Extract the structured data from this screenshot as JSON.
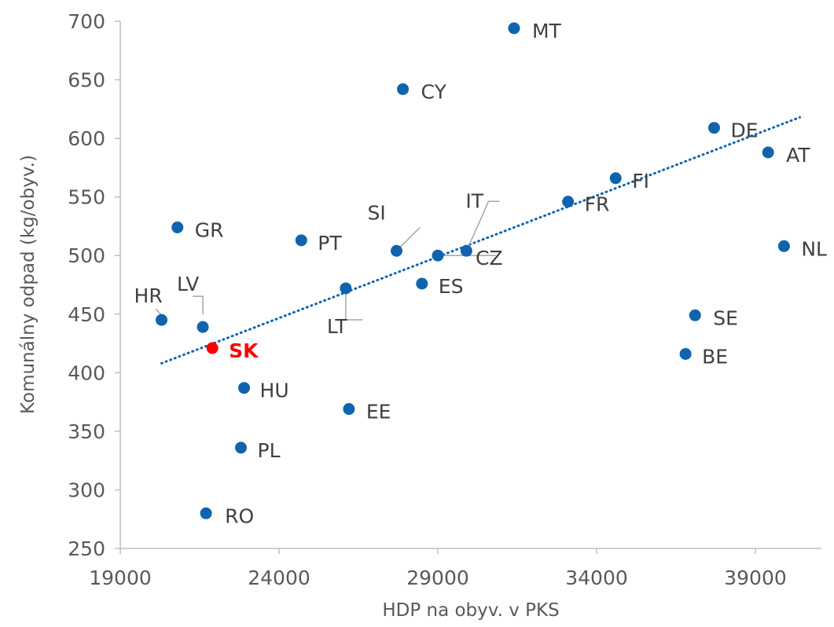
{
  "chart_data": {
    "type": "scatter",
    "xlabel": "HDP na obyv. v PKS",
    "ylabel": "Komunálny odpad (kg/obyv.)",
    "xlim": [
      19000,
      41500
    ],
    "ylim": [
      250,
      700
    ],
    "xticks": [
      19000,
      24000,
      29000,
      34000,
      39000
    ],
    "yticks": [
      250,
      300,
      350,
      400,
      450,
      500,
      550,
      600,
      650,
      700
    ],
    "grid": false,
    "legend": "none",
    "point_color": "#1064ae",
    "highlight_color": "#ff0000",
    "trendline": {
      "style": "dotted",
      "color": "#1064ae",
      "x": [
        20300,
        40400
      ],
      "y": [
        408,
        618
      ]
    },
    "points": [
      {
        "label": "MT",
        "x": 31400,
        "y": 694
      },
      {
        "label": "CY",
        "x": 27900,
        "y": 642
      },
      {
        "label": "DE",
        "x": 37700,
        "y": 609
      },
      {
        "label": "AT",
        "x": 39400,
        "y": 588
      },
      {
        "label": "FI",
        "x": 34600,
        "y": 566
      },
      {
        "label": "FR",
        "x": 33100,
        "y": 546
      },
      {
        "label": "IT",
        "x": 29900,
        "y": 504
      },
      {
        "label": "SI",
        "x": 27700,
        "y": 504
      },
      {
        "label": "CZ",
        "x": 29000,
        "y": 500
      },
      {
        "label": "GR",
        "x": 20800,
        "y": 524
      },
      {
        "label": "PT",
        "x": 24700,
        "y": 513
      },
      {
        "label": "NL",
        "x": 39900,
        "y": 508
      },
      {
        "label": "ES",
        "x": 28500,
        "y": 476
      },
      {
        "label": "LT",
        "x": 26100,
        "y": 472
      },
      {
        "label": "HR",
        "x": 20300,
        "y": 445
      },
      {
        "label": "LV",
        "x": 21600,
        "y": 439
      },
      {
        "label": "SE",
        "x": 37100,
        "y": 449
      },
      {
        "label": "SK",
        "x": 21900,
        "y": 421,
        "highlight": true
      },
      {
        "label": "BE",
        "x": 36800,
        "y": 416
      },
      {
        "label": "HU",
        "x": 22900,
        "y": 387
      },
      {
        "label": "EE",
        "x": 26200,
        "y": 369
      },
      {
        "label": "PL",
        "x": 22800,
        "y": 336
      },
      {
        "label": "RO",
        "x": 21700,
        "y": 280
      }
    ]
  }
}
